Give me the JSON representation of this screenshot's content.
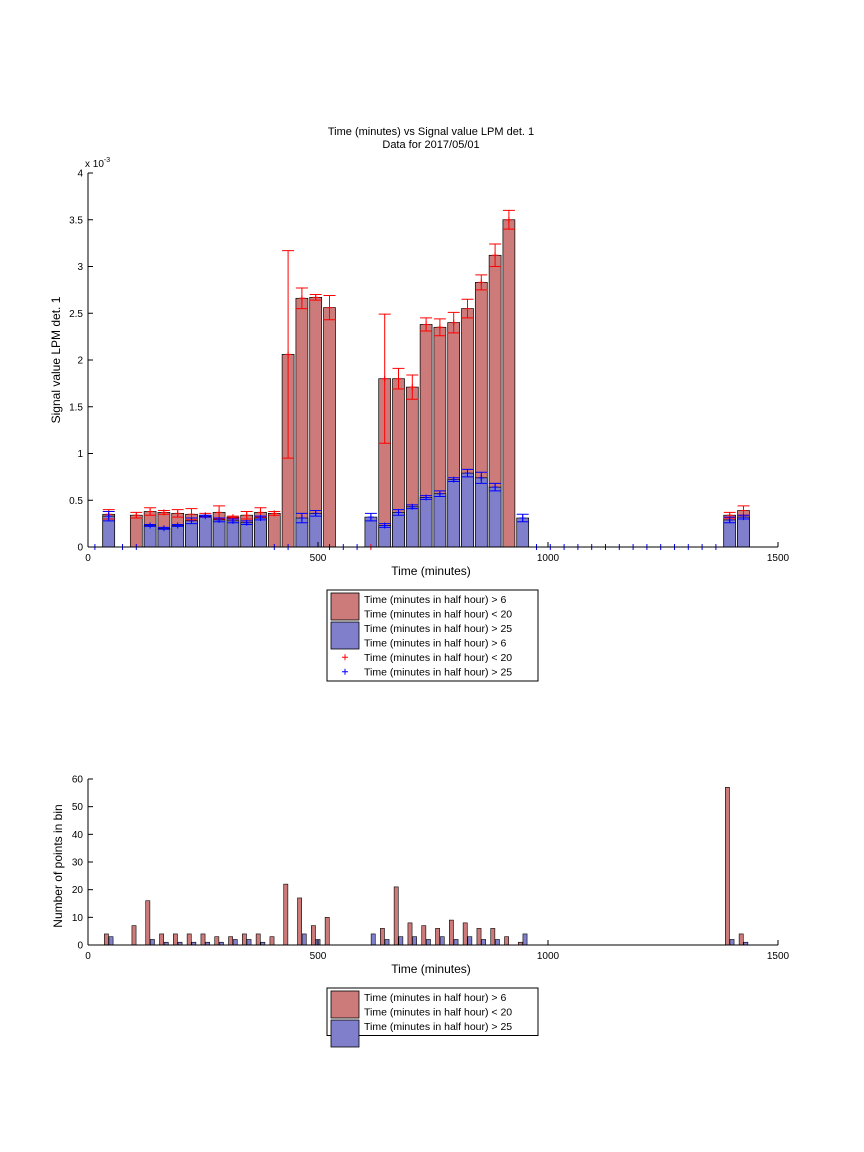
{
  "chart_data": [
    {
      "type": "bar",
      "title": "Time (minutes) vs Signal value LPM det. 1",
      "subtitle": "Data for 2017/05/01",
      "xlabel": "Time (minutes)",
      "ylabel": "Signal value LPM det. 1",
      "exponent_label": "x 10",
      "exponent_power": "-3",
      "xlim": [
        0,
        1500
      ],
      "ylim": [
        0,
        0.004
      ],
      "x_ticks": [
        0,
        500,
        1000,
        1500
      ],
      "x_tick_labels": [
        "0",
        "500",
        "1000",
        "1500"
      ],
      "y_ticks": [
        0,
        0.0005,
        0.001,
        0.0015,
        0.002,
        0.0025,
        0.003,
        0.0035,
        0.004
      ],
      "y_tick_labels": [
        "0",
        "0.5",
        "1",
        "1.5",
        "2",
        "2.5",
        "3",
        "3.5",
        "4"
      ],
      "grid": false,
      "legend_position": "below",
      "legend": [
        {
          "label": "Time (minutes in half hour) > 6",
          "kind": "patch",
          "color": "#cc7a7a"
        },
        {
          "label": "Time (minutes in half hour) < 20",
          "kind": "none",
          "color": ""
        },
        {
          "label": "Time (minutes in half hour) > 25",
          "kind": "patch",
          "color": "#7f7fcc"
        },
        {
          "label": "Time (minutes in half hour) > 6",
          "kind": "none",
          "color": ""
        },
        {
          "label": "Time (minutes in half hour) < 20",
          "kind": "plus",
          "color": "#ff0000"
        },
        {
          "label": "Time (minutes in half hour) > 25",
          "kind": "plus",
          "color": "#0000ff"
        }
      ],
      "series": [
        {
          "color": "#cc7a7a",
          "marker_color": "#ff0000",
          "bars": [
            {
              "x": 45,
              "y": 0.00035,
              "err": 5e-05
            },
            {
              "x": 105,
              "y": 0.00034,
              "err": 3e-05
            },
            {
              "x": 135,
              "y": 0.00038,
              "err": 4e-05
            },
            {
              "x": 165,
              "y": 0.00037,
              "err": 2e-05
            },
            {
              "x": 195,
              "y": 0.00036,
              "err": 4e-05
            },
            {
              "x": 225,
              "y": 0.00035,
              "err": 6e-05
            },
            {
              "x": 255,
              "y": 0.00034,
              "err": 2e-05
            },
            {
              "x": 285,
              "y": 0.00037,
              "err": 7e-05
            },
            {
              "x": 315,
              "y": 0.00032,
              "err": 1e-05
            },
            {
              "x": 345,
              "y": 0.00034,
              "err": 4e-05
            },
            {
              "x": 375,
              "y": 0.00037,
              "err": 5e-05
            },
            {
              "x": 405,
              "y": 0.00036,
              "err": 2e-05
            },
            {
              "x": 435,
              "y": 0.00206,
              "err": 0.00111
            },
            {
              "x": 465,
              "y": 0.00266,
              "err": 0.00011
            },
            {
              "x": 495,
              "y": 0.00267,
              "err": 3e-05
            },
            {
              "x": 525,
              "y": 0.00256,
              "err": 0.00013
            },
            {
              "x": 645,
              "y": 0.0018,
              "err": 0.00069
            },
            {
              "x": 675,
              "y": 0.0018,
              "err": 0.00011
            },
            {
              "x": 705,
              "y": 0.00171,
              "err": 0.00013
            },
            {
              "x": 735,
              "y": 0.00238,
              "err": 7e-05
            },
            {
              "x": 765,
              "y": 0.00235,
              "err": 9e-05
            },
            {
              "x": 795,
              "y": 0.0024,
              "err": 0.00011
            },
            {
              "x": 825,
              "y": 0.00255,
              "err": 0.0001
            },
            {
              "x": 855,
              "y": 0.00283,
              "err": 8e-05
            },
            {
              "x": 885,
              "y": 0.00312,
              "err": 0.00012
            },
            {
              "x": 915,
              "y": 0.0035,
              "err": 0.0001
            },
            {
              "x": 1395,
              "y": 0.00034,
              "err": 3e-05
            },
            {
              "x": 1425,
              "y": 0.00039,
              "err": 5e-05
            }
          ],
          "zero_markers_x": [
            615
          ]
        },
        {
          "color": "#7f7fcc",
          "marker_color": "#0000ff",
          "bars": [
            {
              "x": 45,
              "y": 0.00033,
              "err": 5e-05
            },
            {
              "x": 135,
              "y": 0.00023,
              "err": 1e-05
            },
            {
              "x": 165,
              "y": 0.0002,
              "err": 1e-05
            },
            {
              "x": 195,
              "y": 0.00023,
              "err": 1e-05
            },
            {
              "x": 225,
              "y": 0.00028,
              "err": 3e-05
            },
            {
              "x": 255,
              "y": 0.00033,
              "err": 1e-05
            },
            {
              "x": 285,
              "y": 0.00029,
              "err": 2e-05
            },
            {
              "x": 315,
              "y": 0.00028,
              "err": 2e-05
            },
            {
              "x": 345,
              "y": 0.00026,
              "err": 2e-05
            },
            {
              "x": 375,
              "y": 0.00031,
              "err": 2e-05
            },
            {
              "x": 465,
              "y": 0.00031,
              "err": 5e-05
            },
            {
              "x": 495,
              "y": 0.00036,
              "err": 3e-05
            },
            {
              "x": 615,
              "y": 0.00032,
              "err": 4e-05
            },
            {
              "x": 645,
              "y": 0.00023,
              "err": 2e-05
            },
            {
              "x": 675,
              "y": 0.00037,
              "err": 3e-05
            },
            {
              "x": 705,
              "y": 0.00043,
              "err": 2e-05
            },
            {
              "x": 735,
              "y": 0.00053,
              "err": 2e-05
            },
            {
              "x": 765,
              "y": 0.00057,
              "err": 3e-05
            },
            {
              "x": 795,
              "y": 0.00072,
              "err": 2e-05
            },
            {
              "x": 825,
              "y": 0.00079,
              "err": 4e-05
            },
            {
              "x": 855,
              "y": 0.00074,
              "err": 6e-05
            },
            {
              "x": 885,
              "y": 0.00064,
              "err": 4e-05
            },
            {
              "x": 945,
              "y": 0.00031,
              "err": 4e-05
            },
            {
              "x": 1395,
              "y": 0.00029,
              "err": 3e-05
            },
            {
              "x": 1425,
              "y": 0.00032,
              "err": 2e-05
            }
          ],
          "zero_markers_x": [
            15,
            75,
            105,
            405,
            435,
            525,
            555,
            585,
            975,
            1005,
            1035,
            1065,
            1095,
            1125,
            1155,
            1185,
            1215,
            1245,
            1275,
            1305,
            1335,
            1365
          ]
        }
      ]
    },
    {
      "type": "bar",
      "title": "",
      "xlabel": "Time (minutes)",
      "ylabel": "Number of points in bin",
      "xlim": [
        0,
        1500
      ],
      "ylim": [
        0,
        60
      ],
      "x_ticks": [
        0,
        500,
        1000,
        1500
      ],
      "x_tick_labels": [
        "0",
        "500",
        "1000",
        "1500"
      ],
      "y_ticks": [
        0,
        10,
        20,
        30,
        40,
        50,
        60
      ],
      "y_tick_labels": [
        "0",
        "10",
        "20",
        "30",
        "40",
        "50",
        "60"
      ],
      "grid": false,
      "legend_position": "below",
      "legend": [
        {
          "label": "Time (minutes in half hour) > 6",
          "kind": "patch",
          "color": "#cc7a7a"
        },
        {
          "label": "Time (minutes in half hour) < 20",
          "kind": "none",
          "color": ""
        },
        {
          "label": "Time (minutes in half hour) > 25",
          "kind": "patch",
          "color": "#7f7fcc"
        }
      ],
      "series": [
        {
          "color": "#cc7a7a",
          "x": [
            40,
            100,
            130,
            160,
            190,
            220,
            250,
            280,
            310,
            340,
            370,
            400,
            430,
            460,
            490,
            520,
            640,
            670,
            700,
            730,
            760,
            790,
            820,
            850,
            880,
            910,
            940,
            1390,
            1420
          ],
          "values": [
            4,
            7,
            16,
            4,
            4,
            4,
            4,
            3,
            3,
            4,
            4,
            3,
            22,
            17,
            7,
            10,
            6,
            21,
            8,
            7,
            6,
            9,
            8,
            6,
            6,
            3,
            1,
            57,
            4
          ]
        },
        {
          "color": "#7f7fcc",
          "x": [
            50,
            140,
            170,
            200,
            230,
            260,
            290,
            320,
            350,
            380,
            470,
            500,
            620,
            650,
            680,
            710,
            740,
            770,
            800,
            830,
            860,
            890,
            950,
            1400,
            1430
          ],
          "values": [
            3,
            2,
            1,
            1,
            1,
            1,
            1,
            2,
            2,
            1,
            4,
            2,
            4,
            2,
            3,
            3,
            2,
            3,
            2,
            3,
            2,
            2,
            4,
            2,
            1
          ]
        }
      ]
    }
  ]
}
